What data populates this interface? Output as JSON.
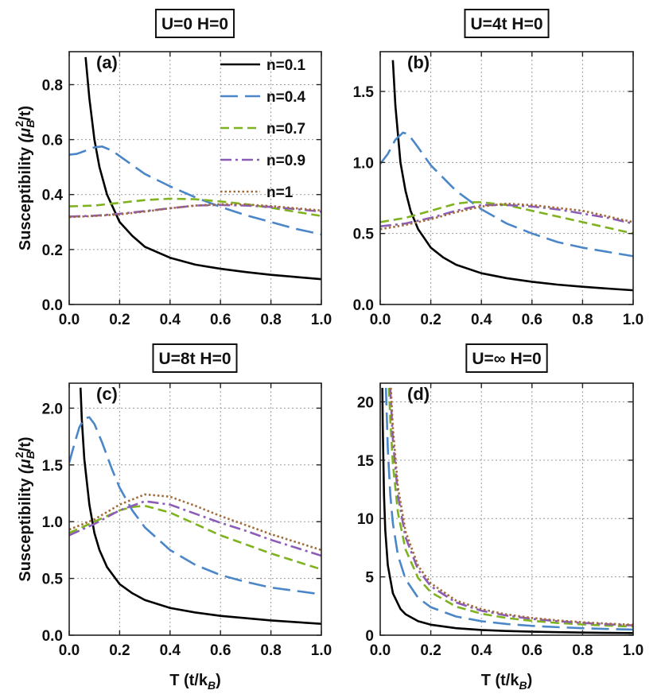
{
  "chart_data": [
    {
      "type": "line",
      "panel_label": "(a)",
      "title": "U=0   H=0",
      "xlabel": "",
      "ylabel": "Susceptibility (μB²/t)",
      "xlim": [
        0,
        1.0
      ],
      "ylim": [
        0,
        0.92
      ],
      "xticks": [
        0.0,
        0.2,
        0.4,
        0.6,
        0.8,
        1.0
      ],
      "xtick_labels": [
        "0.0",
        "0.2",
        "0.4",
        "0.6",
        "0.8",
        "1.0"
      ],
      "yticks": [
        0.0,
        0.2,
        0.4,
        0.6,
        0.8
      ],
      "ytick_labels": [
        "0.0",
        "0.2",
        "0.4",
        "0.6",
        "0.8"
      ],
      "legend": {
        "position": "top-right",
        "entries": [
          "n=0.1",
          "n=0.4",
          "n=0.7",
          "n=0.9",
          "n=1"
        ]
      },
      "series": [
        {
          "name": "n=0.1",
          "x": [
            0.065,
            0.08,
            0.1,
            0.12,
            0.15,
            0.2,
            0.25,
            0.3,
            0.4,
            0.5,
            0.6,
            0.7,
            0.8,
            0.9,
            1.0
          ],
          "values": [
            0.9,
            0.75,
            0.6,
            0.5,
            0.4,
            0.3,
            0.25,
            0.21,
            0.17,
            0.145,
            0.13,
            0.118,
            0.108,
            0.1,
            0.092
          ]
        },
        {
          "name": "n=0.4",
          "x": [
            0.0,
            0.03,
            0.06,
            0.1,
            0.13,
            0.17,
            0.2,
            0.3,
            0.4,
            0.5,
            0.6,
            0.7,
            0.8,
            0.9,
            1.0
          ],
          "values": [
            0.545,
            0.548,
            0.558,
            0.572,
            0.575,
            0.56,
            0.54,
            0.475,
            0.43,
            0.39,
            0.355,
            0.325,
            0.3,
            0.275,
            0.255
          ]
        },
        {
          "name": "n=0.7",
          "x": [
            0.0,
            0.1,
            0.2,
            0.3,
            0.4,
            0.5,
            0.6,
            0.7,
            0.8,
            0.9,
            1.0
          ],
          "values": [
            0.357,
            0.36,
            0.37,
            0.38,
            0.385,
            0.383,
            0.375,
            0.365,
            0.352,
            0.337,
            0.322
          ]
        },
        {
          "name": "n=0.9",
          "x": [
            0.0,
            0.1,
            0.2,
            0.3,
            0.4,
            0.5,
            0.6,
            0.7,
            0.8,
            0.9,
            1.0
          ],
          "values": [
            0.32,
            0.323,
            0.33,
            0.34,
            0.35,
            0.36,
            0.362,
            0.36,
            0.355,
            0.347,
            0.338
          ]
        },
        {
          "name": "n=1",
          "x": [
            0.0,
            0.1,
            0.2,
            0.3,
            0.4,
            0.5,
            0.6,
            0.7,
            0.8,
            0.9,
            1.0
          ],
          "values": [
            0.318,
            0.322,
            0.328,
            0.338,
            0.35,
            0.36,
            0.365,
            0.364,
            0.358,
            0.35,
            0.342
          ]
        }
      ]
    },
    {
      "type": "line",
      "panel_label": "(b)",
      "title": "U=4t   H=0",
      "xlabel": "",
      "ylabel": "",
      "xlim": [
        0,
        1.0
      ],
      "ylim": [
        0,
        1.78
      ],
      "xticks": [
        0.0,
        0.2,
        0.4,
        0.6,
        0.8,
        1.0
      ],
      "xtick_labels": [
        "0.0",
        "0.2",
        "0.4",
        "0.6",
        "0.8",
        "1.0"
      ],
      "yticks": [
        0.0,
        0.5,
        1.0,
        1.5
      ],
      "ytick_labels": [
        "0.0",
        "0.5",
        "1.0",
        "1.5"
      ],
      "series": [
        {
          "name": "n=0.1",
          "x": [
            0.05,
            0.06,
            0.08,
            0.1,
            0.12,
            0.15,
            0.2,
            0.25,
            0.3,
            0.4,
            0.5,
            0.6,
            0.7,
            0.8,
            0.9,
            1.0
          ],
          "values": [
            1.72,
            1.4,
            1.0,
            0.8,
            0.66,
            0.53,
            0.4,
            0.33,
            0.28,
            0.22,
            0.185,
            0.16,
            0.14,
            0.125,
            0.112,
            0.1
          ]
        },
        {
          "name": "n=0.4",
          "x": [
            0.0,
            0.03,
            0.06,
            0.09,
            0.11,
            0.14,
            0.2,
            0.3,
            0.4,
            0.5,
            0.6,
            0.7,
            0.8,
            0.9,
            1.0
          ],
          "values": [
            0.99,
            1.06,
            1.16,
            1.21,
            1.2,
            1.13,
            0.98,
            0.8,
            0.67,
            0.57,
            0.5,
            0.44,
            0.4,
            0.37,
            0.34
          ]
        },
        {
          "name": "n=0.7",
          "x": [
            0.0,
            0.1,
            0.2,
            0.3,
            0.35,
            0.4,
            0.5,
            0.6,
            0.7,
            0.8,
            0.9,
            1.0
          ],
          "values": [
            0.58,
            0.61,
            0.66,
            0.71,
            0.72,
            0.72,
            0.7,
            0.66,
            0.62,
            0.58,
            0.54,
            0.5
          ]
        },
        {
          "name": "n=0.9",
          "x": [
            0.0,
            0.1,
            0.2,
            0.3,
            0.4,
            0.5,
            0.6,
            0.7,
            0.8,
            0.9,
            1.0
          ],
          "values": [
            0.55,
            0.57,
            0.61,
            0.66,
            0.7,
            0.7,
            0.69,
            0.67,
            0.64,
            0.61,
            0.57
          ]
        },
        {
          "name": "n=1",
          "x": [
            0.0,
            0.1,
            0.2,
            0.3,
            0.4,
            0.5,
            0.6,
            0.7,
            0.8,
            0.9,
            1.0
          ],
          "values": [
            0.53,
            0.56,
            0.6,
            0.65,
            0.69,
            0.71,
            0.7,
            0.68,
            0.66,
            0.62,
            0.58
          ]
        }
      ]
    },
    {
      "type": "line",
      "panel_label": "(c)",
      "title": "U=8t   H=0",
      "xlabel": "T (t/kB)",
      "ylabel": "Susceptibility (μB²/t)",
      "xlim": [
        0,
        1.0
      ],
      "ylim": [
        0,
        2.22
      ],
      "xticks": [
        0.0,
        0.2,
        0.4,
        0.6,
        0.8,
        1.0
      ],
      "xtick_labels": [
        "0.0",
        "0.2",
        "0.4",
        "0.6",
        "0.8",
        "1.0"
      ],
      "yticks": [
        0.0,
        0.5,
        1.0,
        1.5,
        2.0
      ],
      "ytick_labels": [
        "0.0",
        "0.5",
        "1.0",
        "1.5",
        "2.0"
      ],
      "series": [
        {
          "name": "n=0.1",
          "x": [
            0.045,
            0.05,
            0.06,
            0.08,
            0.1,
            0.12,
            0.15,
            0.2,
            0.25,
            0.3,
            0.4,
            0.5,
            0.6,
            0.7,
            0.8,
            0.9,
            1.0
          ],
          "values": [
            2.18,
            1.9,
            1.55,
            1.15,
            0.9,
            0.75,
            0.6,
            0.45,
            0.37,
            0.31,
            0.24,
            0.2,
            0.17,
            0.15,
            0.13,
            0.115,
            0.1
          ]
        },
        {
          "name": "n=0.4",
          "x": [
            0.0,
            0.02,
            0.04,
            0.06,
            0.08,
            0.1,
            0.13,
            0.17,
            0.2,
            0.25,
            0.3,
            0.4,
            0.5,
            0.6,
            0.7,
            0.8,
            0.9,
            1.0
          ],
          "values": [
            1.52,
            1.68,
            1.83,
            1.91,
            1.92,
            1.86,
            1.7,
            1.46,
            1.3,
            1.1,
            0.95,
            0.75,
            0.62,
            0.53,
            0.47,
            0.42,
            0.39,
            0.36
          ]
        },
        {
          "name": "n=0.7",
          "x": [
            0.0,
            0.1,
            0.2,
            0.25,
            0.3,
            0.4,
            0.5,
            0.6,
            0.7,
            0.8,
            0.9,
            1.0
          ],
          "values": [
            0.9,
            1.0,
            1.1,
            1.13,
            1.14,
            1.08,
            0.98,
            0.88,
            0.8,
            0.72,
            0.65,
            0.58
          ]
        },
        {
          "name": "n=0.9",
          "x": [
            0.0,
            0.1,
            0.2,
            0.3,
            0.4,
            0.5,
            0.6,
            0.7,
            0.8,
            0.9,
            1.0
          ],
          "values": [
            0.88,
            0.98,
            1.1,
            1.18,
            1.15,
            1.07,
            0.99,
            0.92,
            0.84,
            0.77,
            0.7
          ]
        },
        {
          "name": "n=1",
          "x": [
            0.0,
            0.1,
            0.2,
            0.3,
            0.4,
            0.5,
            0.6,
            0.7,
            0.8,
            0.9,
            1.0
          ],
          "values": [
            0.93,
            1.02,
            1.15,
            1.24,
            1.22,
            1.14,
            1.05,
            0.97,
            0.89,
            0.82,
            0.75
          ]
        }
      ]
    },
    {
      "type": "line",
      "panel_label": "(d)",
      "title": "U=∞   H=0",
      "xlabel": "T (t/kB)",
      "ylabel": "",
      "xlim": [
        0,
        1.0
      ],
      "ylim": [
        0,
        21.6
      ],
      "xticks": [
        0.0,
        0.2,
        0.4,
        0.6,
        0.8,
        1.0
      ],
      "xtick_labels": [
        "0.0",
        "0.2",
        "0.4",
        "0.6",
        "0.8",
        "1.0"
      ],
      "yticks": [
        0,
        5,
        10,
        15,
        20
      ],
      "ytick_labels": [
        "0",
        "5",
        "10",
        "15",
        "20"
      ],
      "series": [
        {
          "name": "n=0.1",
          "x": [
            0.0085,
            0.01,
            0.015,
            0.02,
            0.03,
            0.05,
            0.08,
            0.1,
            0.15,
            0.2,
            0.3,
            0.4,
            0.5,
            0.6,
            0.7,
            0.8,
            0.9,
            1.0
          ],
          "values": [
            21.2,
            18.0,
            12.0,
            9.0,
            6.0,
            3.6,
            2.25,
            1.8,
            1.2,
            0.9,
            0.6,
            0.45,
            0.36,
            0.3,
            0.26,
            0.225,
            0.2,
            0.18
          ]
        },
        {
          "name": "n=0.4",
          "x": [
            0.0225,
            0.03,
            0.04,
            0.05,
            0.07,
            0.1,
            0.15,
            0.2,
            0.3,
            0.4,
            0.5,
            0.6,
            0.7,
            0.8,
            0.9,
            1.0
          ],
          "values": [
            21.2,
            16.0,
            12.0,
            9.6,
            6.86,
            4.8,
            3.2,
            2.4,
            1.6,
            1.2,
            0.96,
            0.8,
            0.69,
            0.6,
            0.53,
            0.48
          ]
        },
        {
          "name": "n=0.7",
          "x": [
            0.0345,
            0.04,
            0.05,
            0.07,
            0.1,
            0.15,
            0.2,
            0.3,
            0.4,
            0.5,
            0.6,
            0.7,
            0.8,
            0.9,
            1.0
          ],
          "values": [
            21.2,
            18.4,
            14.7,
            10.5,
            7.35,
            4.9,
            3.68,
            2.45,
            1.84,
            1.47,
            1.23,
            1.05,
            0.92,
            0.82,
            0.74
          ]
        },
        {
          "name": "n=0.9",
          "x": [
            0.0395,
            0.05,
            0.07,
            0.1,
            0.15,
            0.2,
            0.3,
            0.4,
            0.5,
            0.6,
            0.7,
            0.8,
            0.9,
            1.0
          ],
          "values": [
            21.2,
            16.8,
            12.0,
            8.4,
            5.6,
            4.2,
            2.8,
            2.1,
            1.68,
            1.4,
            1.2,
            1.05,
            0.93,
            0.84
          ]
        },
        {
          "name": "n=1",
          "x": [
            0.042,
            0.05,
            0.07,
            0.1,
            0.15,
            0.2,
            0.3,
            0.4,
            0.5,
            0.6,
            0.7,
            0.8,
            0.9,
            1.0
          ],
          "values": [
            21.2,
            17.8,
            12.7,
            8.9,
            5.93,
            4.45,
            2.97,
            2.23,
            1.78,
            1.48,
            1.27,
            1.11,
            0.99,
            0.89
          ]
        }
      ]
    }
  ],
  "series_styles": {
    "n=0.1": {
      "color": "#000000",
      "dash": "solid"
    },
    "n=0.4": {
      "color": "#4a86c8",
      "dash": "long-dash"
    },
    "n=0.7": {
      "color": "#7fb21f",
      "dash": "dash"
    },
    "n=0.9": {
      "color": "#8b5db8",
      "dash": "dash-dot"
    },
    "n=1": {
      "color": "#a26b3a",
      "dash": "dot"
    }
  },
  "axis_text": {
    "ylabel_main": "Susceptibility",
    "ylabel_unit_open": "(μ",
    "ylabel_unit_sub": "B",
    "ylabel_unit_sup": "2",
    "ylabel_unit_close": "/t)",
    "xlabel_main": "T (t/k",
    "xlabel_sub": "B",
    "xlabel_close": ")"
  }
}
